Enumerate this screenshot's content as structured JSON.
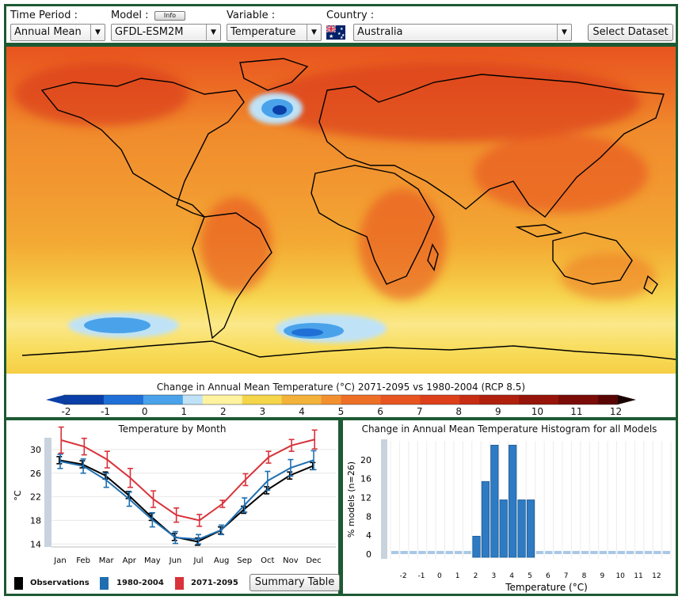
{
  "controls": {
    "time_period": {
      "label": "Time Period :",
      "value": "Annual Mean"
    },
    "model": {
      "label": "Model :",
      "info_button": "Info",
      "value": "GFDL-ESM2M"
    },
    "variable": {
      "label": "Variable :",
      "value": "Temperature"
    },
    "country": {
      "label": "Country :",
      "value": "Australia",
      "flag": "australia-flag-icon"
    },
    "select_dataset": "Select Dataset"
  },
  "map": {
    "colorbar_title": "Change in Annual Mean Temperature (°C) 2071-2095 vs 1980-2004 (RCP 8.5)",
    "colorbar_ticks": [
      "-2",
      "-1",
      "0",
      "1",
      "2",
      "3",
      "4",
      "5",
      "6",
      "7",
      "8",
      "9",
      "10",
      "11",
      "12"
    ],
    "colors": [
      "#0a3fa8",
      "#1f6fd6",
      "#4aa3ea",
      "#bfe2f7",
      "#fff3a0",
      "#f5d54a",
      "#f3b23a",
      "#f29030",
      "#ee6f26",
      "#e8541f",
      "#dc3f19",
      "#c72d12",
      "#b0200d",
      "#961409",
      "#7a0b06",
      "#5a0503"
    ]
  },
  "month_chart": {
    "title": "Temperature by Month",
    "ylabel": "°C",
    "summary_button": "Summary Table",
    "legend": [
      {
        "label": "Observations",
        "color": "#000000"
      },
      {
        "label": "1980-2004",
        "color": "#1f6fb0"
      },
      {
        "label": "2071-2095",
        "color": "#d8323a"
      }
    ]
  },
  "hist_chart": {
    "title": "Change in Annual Mean Temperature Histogram for all Models",
    "xlabel": "Temperature (°C)",
    "ylabel": "% models (n=26)"
  },
  "chart_data": [
    {
      "type": "line",
      "title": "Temperature by Month",
      "ylabel": "°C",
      "categories": [
        "Jan",
        "Feb",
        "Mar",
        "Apr",
        "May",
        "Jun",
        "Jul",
        "Aug",
        "Sep",
        "Oct",
        "Nov",
        "Dec"
      ],
      "ylim": [
        13.5,
        32
      ],
      "yticks": [
        14,
        18,
        22,
        26,
        30
      ],
      "series": [
        {
          "name": "Observations",
          "color": "#000000",
          "values": [
            28.2,
            27.5,
            25.6,
            22.3,
            18.6,
            15.2,
            14.4,
            16.3,
            19.8,
            23.1,
            25.6,
            27.2
          ],
          "err": [
            0.6,
            0.6,
            0.6,
            0.6,
            0.6,
            0.6,
            0.6,
            0.6,
            0.6,
            0.6,
            0.6,
            0.6
          ]
        },
        {
          "name": "1980-2004",
          "color": "#1f6fb0",
          "values": [
            28.0,
            27.2,
            24.8,
            21.6,
            18.1,
            15.1,
            14.8,
            16.4,
            20.6,
            24.7,
            26.9,
            28.2
          ],
          "err": [
            1.2,
            1.2,
            1.2,
            1.2,
            1.2,
            1.0,
            0.8,
            0.8,
            1.2,
            1.6,
            1.4,
            1.6
          ]
        },
        {
          "name": "2071-2095",
          "color": "#d8323a",
          "values": [
            31.6,
            30.5,
            28.3,
            25.2,
            21.6,
            18.9,
            18.0,
            20.8,
            24.9,
            28.7,
            30.7,
            31.7
          ],
          "err": [
            2.2,
            1.4,
            1.4,
            1.6,
            1.4,
            1.2,
            1.0,
            0.6,
            1.0,
            1.0,
            1.0,
            1.6
          ]
        }
      ]
    },
    {
      "type": "bar",
      "title": "Change in Annual Mean Temperature Histogram for all Models",
      "xlabel": "Temperature (°C)",
      "ylabel": "% models (n=26)",
      "categories": [
        "-2.5",
        "-2",
        "-1.5",
        "-1",
        "-0.5",
        "0",
        "0.5",
        "1",
        "1.5",
        "2",
        "2.5",
        "3",
        "3.5",
        "4",
        "4.5",
        "5",
        "5.5",
        "6",
        "6.5",
        "7",
        "7.5",
        "8",
        "8.5",
        "9",
        "9.5",
        "10",
        "10.5",
        "11",
        "11.5",
        "12",
        "12.5"
      ],
      "values": [
        0,
        0,
        0,
        0,
        0,
        0,
        0,
        0,
        0,
        3.8,
        15.4,
        23.1,
        11.5,
        23.1,
        11.5,
        11.5,
        0,
        0,
        0,
        0,
        0,
        0,
        0,
        0,
        0,
        0,
        0,
        0,
        0,
        0,
        0
      ],
      "xticks": [
        "-2",
        "-1",
        "0",
        "1",
        "2",
        "3",
        "4",
        "5",
        "6",
        "7",
        "8",
        "9",
        "10",
        "11",
        "12"
      ],
      "yticks": [
        0,
        4,
        8,
        12,
        16,
        20
      ],
      "ylim": [
        -1,
        24
      ]
    }
  ]
}
